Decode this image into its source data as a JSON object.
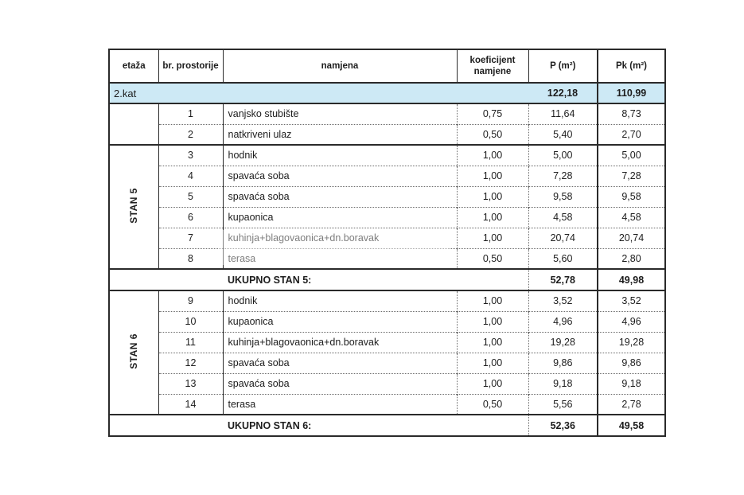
{
  "table": {
    "header": {
      "etaza": "etaža",
      "br_prostorije": "br. prostorije",
      "namjena": "namjena",
      "koeficijent": "koeficijent namjene",
      "p": "P (m²)",
      "pk": "Pk (m²)"
    },
    "band": {
      "label": "2.kat",
      "p": "122,18",
      "pk": "110,99",
      "highlight_color": "#cde9f5"
    },
    "groups": [
      {
        "etaza_label": "",
        "rows": [
          {
            "num": "1",
            "name": "vanjsko stubište",
            "koef": "0,75",
            "p": "11,64",
            "pk": "8,73"
          },
          {
            "num": "2",
            "name": "natkriveni ulaz",
            "koef": "0,50",
            "p": "5,40",
            "pk": "2,70"
          }
        ]
      },
      {
        "etaza_label": "STAN 5",
        "rows": [
          {
            "num": "3",
            "name": "hodnik",
            "koef": "1,00",
            "p": "5,00",
            "pk": "5,00"
          },
          {
            "num": "4",
            "name": "spavaća soba",
            "koef": "1,00",
            "p": "7,28",
            "pk": "7,28"
          },
          {
            "num": "5",
            "name": "spavaća soba",
            "koef": "1,00",
            "p": "9,58",
            "pk": "9,58"
          },
          {
            "num": "6",
            "name": "kupaonica",
            "koef": "1,00",
            "p": "4,58",
            "pk": "4,58"
          },
          {
            "num": "7",
            "name": "kuhinja+blagovaonica+dn.boravak",
            "koef": "1,00",
            "p": "20,74",
            "pk": "20,74"
          },
          {
            "num": "8",
            "name": "terasa",
            "koef": "0,50",
            "p": "5,60",
            "pk": "2,80"
          }
        ],
        "total": {
          "label": "UKUPNO STAN 5:",
          "p": "52,78",
          "pk": "49,98"
        }
      },
      {
        "etaza_label": "STAN 6",
        "rows": [
          {
            "num": "9",
            "name": "hodnik",
            "koef": "1,00",
            "p": "3,52",
            "pk": "3,52"
          },
          {
            "num": "10",
            "name": "kupaonica",
            "koef": "1,00",
            "p": "4,96",
            "pk": "4,96"
          },
          {
            "num": "11",
            "name": "kuhinja+blagovaonica+dn.boravak",
            "koef": "1,00",
            "p": "19,28",
            "pk": "19,28"
          },
          {
            "num": "12",
            "name": "spavaća soba",
            "koef": "1,00",
            "p": "9,86",
            "pk": "9,86"
          },
          {
            "num": "13",
            "name": "spavaća soba",
            "koef": "1,00",
            "p": "9,18",
            "pk": "9,18"
          },
          {
            "num": "14",
            "name": "terasa",
            "koef": "0,50",
            "p": "5,56",
            "pk": "2,78"
          }
        ],
        "total": {
          "label": "UKUPNO STAN 6:",
          "p": "52,36",
          "pk": "49,58"
        }
      }
    ]
  }
}
